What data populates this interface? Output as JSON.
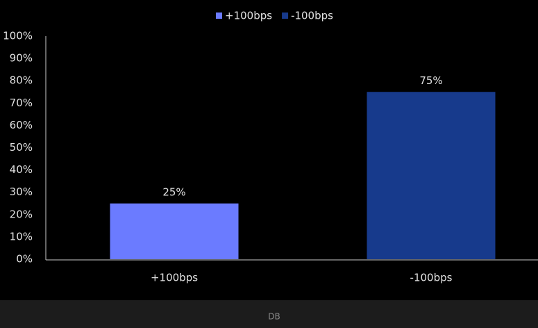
{
  "chart_data": {
    "type": "bar",
    "categories": [
      "+100bps",
      "-100bps"
    ],
    "series": [
      {
        "name": "+100bps",
        "color": "#6b7bff",
        "values": [
          25,
          null
        ],
        "value_labels": [
          "25%",
          null
        ]
      },
      {
        "name": "-100bps",
        "color": "#173a8c",
        "values": [
          null,
          75
        ],
        "value_labels": [
          null,
          "75%"
        ]
      }
    ],
    "ylim": [
      0,
      100
    ],
    "yticks": [
      {
        "value": 0,
        "label": "0%"
      },
      {
        "value": 10,
        "label": "10%"
      },
      {
        "value": 20,
        "label": "20%"
      },
      {
        "value": 30,
        "label": "30%"
      },
      {
        "value": 40,
        "label": "40%"
      },
      {
        "value": 50,
        "label": "50%"
      },
      {
        "value": 60,
        "label": "60%"
      },
      {
        "value": 70,
        "label": "70%"
      },
      {
        "value": 80,
        "label": "80%"
      },
      {
        "value": 90,
        "label": "90%"
      },
      {
        "value": 100,
        "label": "100%"
      }
    ],
    "grid": false,
    "legend": "top"
  },
  "footer": "DB"
}
